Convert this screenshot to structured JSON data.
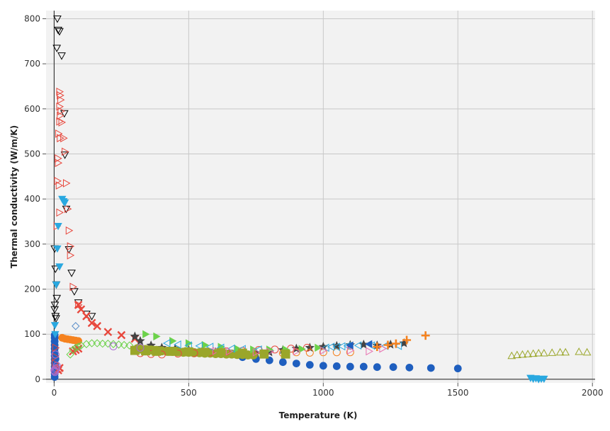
{
  "chart_data": {
    "type": "scatter",
    "title": "",
    "xlabel": "Temperature (K)",
    "ylabel": "Thermal conductivity (W/m/K)",
    "xlim": [
      -30,
      2010
    ],
    "ylim": [
      -8,
      818
    ],
    "xticks": [
      0,
      500,
      1000,
      1500,
      2000
    ],
    "yticks": [
      0,
      100,
      200,
      300,
      400,
      500,
      600,
      700,
      800
    ],
    "grid": true,
    "legend": "none",
    "series": [
      {
        "marker": "circle",
        "color": "#1f5fbf",
        "filled": true,
        "size": 5,
        "points": [
          [
            2,
            5
          ],
          [
            2,
            12
          ],
          [
            2,
            20
          ],
          [
            2,
            28
          ],
          [
            2,
            36
          ],
          [
            2,
            44
          ],
          [
            2,
            52
          ],
          [
            2,
            60
          ],
          [
            2,
            68
          ],
          [
            2,
            76
          ],
          [
            2,
            84
          ],
          [
            2,
            92
          ],
          [
            2,
            98
          ],
          [
            5,
            45
          ],
          [
            5,
            30
          ],
          [
            700,
            49
          ],
          [
            750,
            45
          ],
          [
            800,
            42
          ],
          [
            850,
            38
          ],
          [
            900,
            35
          ],
          [
            950,
            32
          ],
          [
            1000,
            30
          ],
          [
            1050,
            29
          ],
          [
            1100,
            28
          ],
          [
            1150,
            28
          ],
          [
            1200,
            27
          ],
          [
            1260,
            27
          ],
          [
            1320,
            26
          ],
          [
            1400,
            25
          ],
          [
            1500,
            24
          ]
        ]
      },
      {
        "marker": "triangle-down",
        "color": "#000000",
        "filled": false,
        "size": 5,
        "points": [
          [
            12,
            800
          ],
          [
            15,
            775
          ],
          [
            20,
            772
          ],
          [
            10,
            735
          ],
          [
            28,
            718
          ],
          [
            38,
            590
          ],
          [
            40,
            498
          ],
          [
            45,
            378
          ],
          [
            55,
            288
          ],
          [
            65,
            236
          ],
          [
            75,
            195
          ],
          [
            90,
            170
          ],
          [
            120,
            145
          ],
          [
            140,
            140
          ],
          [
            2,
            290
          ],
          [
            5,
            245
          ],
          [
            8,
            210
          ],
          [
            10,
            180
          ],
          [
            3,
            165
          ],
          [
            2,
            155
          ],
          [
            5,
            140
          ],
          [
            7,
            135
          ]
        ]
      },
      {
        "marker": "triangle-right",
        "color": "#e8473c",
        "filled": false,
        "size": 5,
        "points": [
          [
            20,
            638
          ],
          [
            22,
            630
          ],
          [
            24,
            620
          ],
          [
            20,
            605
          ],
          [
            25,
            595
          ],
          [
            22,
            585
          ],
          [
            20,
            572
          ],
          [
            28,
            570
          ],
          [
            16,
            545
          ],
          [
            22,
            535
          ],
          [
            35,
            535
          ],
          [
            40,
            505
          ],
          [
            14,
            490
          ],
          [
            15,
            480
          ],
          [
            12,
            440
          ],
          [
            18,
            430
          ],
          [
            45,
            435
          ],
          [
            50,
            378
          ],
          [
            55,
            330
          ],
          [
            20,
            370
          ],
          [
            10,
            340
          ],
          [
            60,
            275
          ],
          [
            60,
            295
          ],
          [
            70,
            205
          ],
          [
            90,
            165
          ],
          [
            3,
            35
          ],
          [
            4,
            50
          ],
          [
            5,
            70
          ],
          [
            20,
            20
          ]
        ]
      },
      {
        "marker": "triangle-down",
        "color": "#29a8e0",
        "filled": true,
        "size": 5,
        "points": [
          [
            30,
            400
          ],
          [
            35,
            395
          ],
          [
            40,
            392
          ],
          [
            3,
            120
          ],
          [
            4,
            100
          ],
          [
            15,
            340
          ],
          [
            12,
            290
          ],
          [
            20,
            250
          ],
          [
            8,
            210
          ],
          [
            1770,
            3
          ],
          [
            1780,
            1
          ],
          [
            1790,
            2
          ],
          [
            1800,
            0
          ],
          [
            1810,
            1
          ],
          [
            1820,
            1
          ]
        ]
      },
      {
        "marker": "x",
        "color": "#e8473c",
        "filled": true,
        "size": 5,
        "points": [
          [
            90,
            165
          ],
          [
            100,
            155
          ],
          [
            120,
            140
          ],
          [
            140,
            125
          ],
          [
            160,
            118
          ],
          [
            200,
            105
          ],
          [
            250,
            98
          ],
          [
            300,
            90
          ],
          [
            70,
            62
          ],
          [
            80,
            65
          ],
          [
            90,
            68
          ],
          [
            20,
            25
          ],
          [
            15,
            20
          ]
        ]
      },
      {
        "marker": "circle",
        "color": "#f5821f",
        "filled": true,
        "size": 5,
        "points": [
          [
            30,
            92
          ],
          [
            40,
            90
          ],
          [
            50,
            89
          ],
          [
            60,
            88
          ],
          [
            70,
            87
          ],
          [
            80,
            86
          ],
          [
            90,
            85
          ]
        ]
      },
      {
        "marker": "diamond",
        "color": "#6cd24a",
        "filled": false,
        "size": 5,
        "points": [
          [
            60,
            55
          ],
          [
            70,
            65
          ],
          [
            80,
            70
          ],
          [
            90,
            72
          ],
          [
            100,
            75
          ],
          [
            120,
            78
          ],
          [
            140,
            80
          ],
          [
            160,
            80
          ],
          [
            180,
            79
          ],
          [
            200,
            79
          ],
          [
            220,
            78
          ],
          [
            240,
            77
          ],
          [
            260,
            76
          ],
          [
            280,
            75
          ]
        ]
      },
      {
        "marker": "diamond",
        "color": "#5b8ec9",
        "filled": false,
        "size": 5,
        "points": [
          [
            80,
            118
          ]
        ]
      },
      {
        "marker": "star",
        "color": "#444444",
        "filled": true,
        "size": 6,
        "points": [
          [
            300,
            95
          ],
          [
            320,
            85
          ],
          [
            360,
            75
          ],
          [
            400,
            70
          ],
          [
            450,
            68
          ],
          [
            500,
            65
          ],
          [
            550,
            62
          ],
          [
            600,
            60
          ],
          [
            650,
            58
          ],
          [
            700,
            57
          ],
          [
            750,
            58
          ],
          [
            800,
            60
          ],
          [
            850,
            65
          ],
          [
            900,
            68
          ],
          [
            950,
            70
          ],
          [
            1000,
            72
          ],
          [
            1050,
            74
          ],
          [
            1100,
            76
          ],
          [
            1150,
            77
          ],
          [
            1200,
            75
          ],
          [
            1250,
            77
          ],
          [
            1300,
            80
          ]
        ]
      },
      {
        "marker": "circle",
        "color": "#9aa62a",
        "filled": true,
        "size": 6,
        "points": [
          [
            310,
            68
          ],
          [
            320,
            67
          ],
          [
            330,
            66
          ],
          [
            340,
            66
          ],
          [
            350,
            65
          ],
          [
            360,
            65
          ],
          [
            370,
            64
          ],
          [
            380,
            64
          ],
          [
            390,
            63
          ],
          [
            400,
            63
          ],
          [
            420,
            62
          ],
          [
            440,
            62
          ],
          [
            460,
            61
          ],
          [
            480,
            60
          ],
          [
            500,
            60
          ],
          [
            520,
            59
          ],
          [
            540,
            59
          ],
          [
            560,
            58
          ],
          [
            580,
            58
          ],
          [
            600,
            57
          ],
          [
            620,
            57
          ],
          [
            640,
            56
          ],
          [
            660,
            56
          ],
          [
            680,
            55
          ],
          [
            700,
            55
          ],
          [
            720,
            54
          ],
          [
            740,
            54
          ]
        ]
      },
      {
        "marker": "circle",
        "color": "#e8473c",
        "filled": false,
        "size": 5,
        "points": [
          [
            320,
            58
          ],
          [
            360,
            56
          ],
          [
            400,
            55
          ],
          [
            460,
            57
          ],
          [
            520,
            58
          ],
          [
            580,
            60
          ],
          [
            640,
            62
          ],
          [
            700,
            63
          ],
          [
            760,
            65
          ],
          [
            820,
            66
          ],
          [
            880,
            68
          ],
          [
            940,
            70
          ]
        ]
      },
      {
        "marker": "circle",
        "color": "#f5821f",
        "filled": false,
        "size": 5,
        "points": [
          [
            850,
            58
          ],
          [
            900,
            60
          ],
          [
            950,
            59
          ],
          [
            1000,
            60
          ],
          [
            1050,
            60
          ],
          [
            1100,
            60
          ]
        ]
      },
      {
        "marker": "triangle-right",
        "color": "#6cd24a",
        "filled": true,
        "size": 5,
        "points": [
          [
            340,
            100
          ],
          [
            380,
            95
          ],
          [
            440,
            85
          ],
          [
            500,
            80
          ],
          [
            560,
            76
          ],
          [
            620,
            72
          ],
          [
            680,
            68
          ],
          [
            740,
            66
          ],
          [
            800,
            66
          ],
          [
            860,
            66
          ],
          [
            920,
            67
          ],
          [
            980,
            70
          ]
        ]
      },
      {
        "marker": "triangle-left",
        "color": "#29a8e0",
        "filled": false,
        "size": 5,
        "points": [
          [
            420,
            80
          ],
          [
            460,
            77
          ],
          [
            500,
            75
          ],
          [
            540,
            74
          ],
          [
            580,
            72
          ],
          [
            620,
            70
          ],
          [
            660,
            68
          ],
          [
            700,
            67
          ],
          [
            760,
            66
          ],
          [
            1010,
            70
          ],
          [
            1030,
            72
          ],
          [
            1050,
            72
          ],
          [
            1070,
            73
          ],
          [
            1090,
            74
          ],
          [
            1130,
            75
          ],
          [
            1180,
            75
          ],
          [
            1230,
            74
          ],
          [
            1280,
            74
          ]
        ]
      },
      {
        "marker": "triangle-left",
        "color": "#1f5fbf",
        "filled": true,
        "size": 5,
        "points": [
          [
            1170,
            78
          ],
          [
            1100,
            75
          ]
        ]
      },
      {
        "marker": "triangle-right",
        "color": "#e86fb0",
        "filled": false,
        "size": 5,
        "points": [
          [
            600,
            63
          ],
          [
            650,
            62
          ],
          [
            700,
            60
          ],
          [
            750,
            60
          ],
          [
            800,
            61
          ],
          [
            900,
            62
          ],
          [
            1000,
            64
          ],
          [
            1100,
            64
          ],
          [
            1170,
            62
          ],
          [
            1220,
            68
          ]
        ]
      },
      {
        "marker": "plus",
        "color": "#f5821f",
        "filled": true,
        "size": 6,
        "points": [
          [
            1200,
            72
          ],
          [
            1240,
            76
          ],
          [
            1270,
            79
          ],
          [
            1310,
            87
          ],
          [
            1380,
            97
          ]
        ]
      },
      {
        "marker": "triangle-up",
        "color": "#9aa62a",
        "filled": false,
        "size": 5,
        "points": [
          [
            1700,
            52
          ],
          [
            1720,
            54
          ],
          [
            1740,
            55
          ],
          [
            1760,
            56
          ],
          [
            1780,
            57
          ],
          [
            1800,
            58
          ],
          [
            1820,
            58
          ],
          [
            1850,
            59
          ],
          [
            1880,
            60
          ],
          [
            1900,
            60
          ],
          [
            1950,
            61
          ],
          [
            1980,
            60
          ]
        ]
      },
      {
        "marker": "square",
        "color": "#9aa62a",
        "filled": true,
        "size": 6,
        "points": [
          [
            300,
            64
          ],
          [
            340,
            63
          ],
          [
            380,
            62
          ],
          [
            440,
            62
          ],
          [
            500,
            61
          ],
          [
            560,
            60
          ],
          [
            620,
            59
          ],
          [
            700,
            58
          ],
          [
            780,
            56
          ],
          [
            860,
            56
          ]
        ]
      },
      {
        "marker": "circle",
        "color": "#a66ccd",
        "filled": false,
        "size": 5,
        "points": [
          [
            1,
            20
          ],
          [
            2,
            18
          ],
          [
            3,
            16
          ],
          [
            6,
            22
          ],
          [
            8,
            25
          ],
          [
            10,
            30
          ],
          [
            5,
            55
          ],
          [
            220,
            73
          ],
          [
            320,
            70
          ]
        ]
      }
    ]
  }
}
